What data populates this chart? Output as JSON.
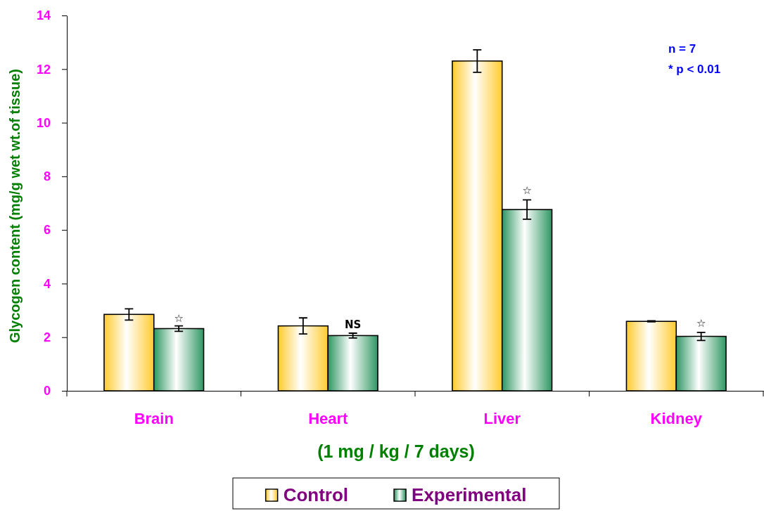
{
  "chart_data": {
    "type": "bar",
    "xlabel": "(1 mg / kg / 7 days)",
    "ylabel": "Glycogen content (mg/g wet wt.of tissue)",
    "categories": [
      "Brain",
      "Heart",
      "Liver",
      "Kidney"
    ],
    "series": [
      {
        "name": "Control",
        "color": "#ffcc33",
        "values": [
          2.85,
          2.42,
          12.3,
          2.59
        ],
        "errors": [
          0.21,
          0.3,
          0.42,
          0.02
        ]
      },
      {
        "name": "Experimental",
        "color": "#339966",
        "values": [
          2.32,
          2.06,
          6.76,
          2.03
        ],
        "errors": [
          0.1,
          0.09,
          0.36,
          0.15
        ]
      }
    ],
    "ylim": [
      0,
      14
    ],
    "yticks": [
      0,
      2,
      4,
      6,
      8,
      10,
      12,
      14
    ],
    "legend": "bottom",
    "grid": false,
    "annotations": [
      {
        "text": "☆",
        "x": "Brain",
        "y": 2.69
      },
      {
        "text": "NS",
        "x": "Heart",
        "y": 2.47
      },
      {
        "text": "☆",
        "x": "Liver",
        "y": 7.48
      },
      {
        "text": "☆",
        "x": "Kidney",
        "y": 2.52
      },
      "n = 7",
      "* p < 0.01"
    ]
  }
}
